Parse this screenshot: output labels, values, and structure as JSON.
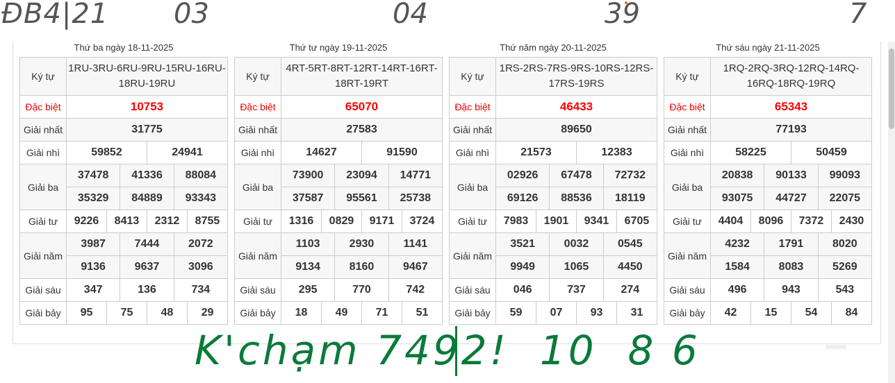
{
  "labels": {
    "kytu": "Ký tự",
    "db": "Đặc biệt",
    "g1": "Giải nhất",
    "g2": "Giải nhì",
    "g3": "Giải ba",
    "g4": "Giải tư",
    "g5": "Giải năm",
    "g6": "Giải sáu",
    "g7": "Giải bảy"
  },
  "results": [
    {
      "date": "Thứ ba ngày 18-11-2025",
      "kytu": "1RU-3RU-6RU-9RU-15RU-16RU-18RU-19RU",
      "db": "10753",
      "g1": "31775",
      "g2": [
        "59852",
        "24941"
      ],
      "g3": [
        "37478",
        "41336",
        "88084",
        "35329",
        "84889",
        "93343"
      ],
      "g4": [
        "9226",
        "8413",
        "2312",
        "8755"
      ],
      "g5": [
        "3987",
        "7444",
        "2072",
        "9136",
        "9637",
        "3096"
      ],
      "g6": [
        "347",
        "136",
        "734"
      ],
      "g7": [
        "95",
        "75",
        "48",
        "29"
      ]
    },
    {
      "date": "Thứ tư ngày 19-11-2025",
      "kytu": "4RT-5RT-8RT-12RT-14RT-16RT-18RT-19RT",
      "db": "65070",
      "g1": "27583",
      "g2": [
        "14627",
        "91590"
      ],
      "g3": [
        "73900",
        "23094",
        "14771",
        "37587",
        "95561",
        "25738"
      ],
      "g4": [
        "1316",
        "0829",
        "9171",
        "3724"
      ],
      "g5": [
        "1103",
        "2930",
        "1141",
        "9134",
        "8160",
        "9467"
      ],
      "g6": [
        "295",
        "770",
        "742"
      ],
      "g7": [
        "18",
        "49",
        "71",
        "51"
      ]
    },
    {
      "date": "Thứ năm ngày 20-11-2025",
      "kytu": "1RS-2RS-7RS-9RS-10RS-12RS-17RS-19RS",
      "db": "46433",
      "g1": "89650",
      "g2": [
        "21573",
        "12383"
      ],
      "g3": [
        "02926",
        "67478",
        "72732",
        "69126",
        "88536",
        "18119"
      ],
      "g4": [
        "7983",
        "1901",
        "9341",
        "6705"
      ],
      "g5": [
        "3521",
        "0032",
        "0545",
        "9949",
        "1065",
        "4450"
      ],
      "g6": [
        "046",
        "737",
        "274"
      ],
      "g7": [
        "59",
        "07",
        "93",
        "31"
      ]
    },
    {
      "date": "Thứ sáu ngày 21-11-2025",
      "kytu": "1RQ-2RQ-3RQ-12RQ-14RQ-16RQ-18RQ-19RQ",
      "db": "65343",
      "g1": "77193",
      "g2": [
        "58225",
        "50459"
      ],
      "g3": [
        "20838",
        "90133",
        "99093",
        "93075",
        "44727",
        "22075"
      ],
      "g4": [
        "4404",
        "8096",
        "7372",
        "2430"
      ],
      "g5": [
        "4232",
        "1791",
        "8020",
        "1584",
        "8083",
        "5269"
      ],
      "g6": [
        "496",
        "943",
        "543"
      ],
      "g7": [
        "42",
        "15",
        "54",
        "84"
      ]
    }
  ],
  "annotations": {
    "top": "ĐB4|21",
    "marks": [
      "03",
      "04",
      "39",
      "7"
    ],
    "bottom": "K'chạm 7492!  10  8 6"
  },
  "colors": {
    "special": "#ff0000",
    "ink_green": "#0a7a3a",
    "ink_gray": "#555555"
  }
}
